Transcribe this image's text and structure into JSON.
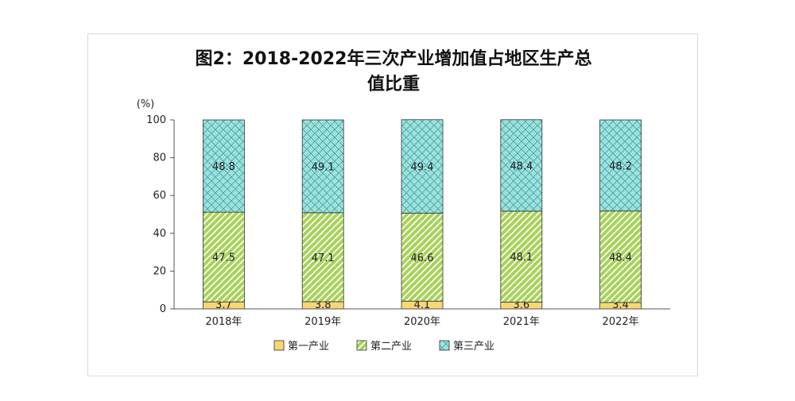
{
  "chart_data": {
    "type": "bar",
    "stacked": true,
    "title_lines": [
      "图2：2018-2022年三次产业增加值占地区生产总",
      "值比重"
    ],
    "ylabel": "(%)",
    "ylim": [
      0,
      100
    ],
    "yticks": [
      0,
      20,
      40,
      60,
      80,
      100
    ],
    "categories": [
      "2018年",
      "2019年",
      "2020年",
      "2021年",
      "2022年"
    ],
    "series": [
      {
        "name": "第一产业",
        "values": [
          3.7,
          3.8,
          4.1,
          3.6,
          3.4
        ],
        "labels": [
          "3.7",
          "3.8",
          "4.1",
          "3.6",
          "3.4"
        ],
        "color": "#f7d774"
      },
      {
        "name": "第二产业",
        "values": [
          47.5,
          47.1,
          46.6,
          48.1,
          48.4
        ],
        "labels": [
          "47.5",
          "47.1",
          "46.6",
          "48.1",
          "48.4"
        ],
        "color": "#a9d25b"
      },
      {
        "name": "第三产业",
        "values": [
          48.8,
          49.1,
          49.4,
          48.4,
          48.2
        ],
        "labels": [
          "48.8",
          "49.1",
          "49.4",
          "48.4",
          "48.2"
        ],
        "color": "#9fe0dc"
      }
    ],
    "legend_position": "bottom",
    "grid": false
  }
}
